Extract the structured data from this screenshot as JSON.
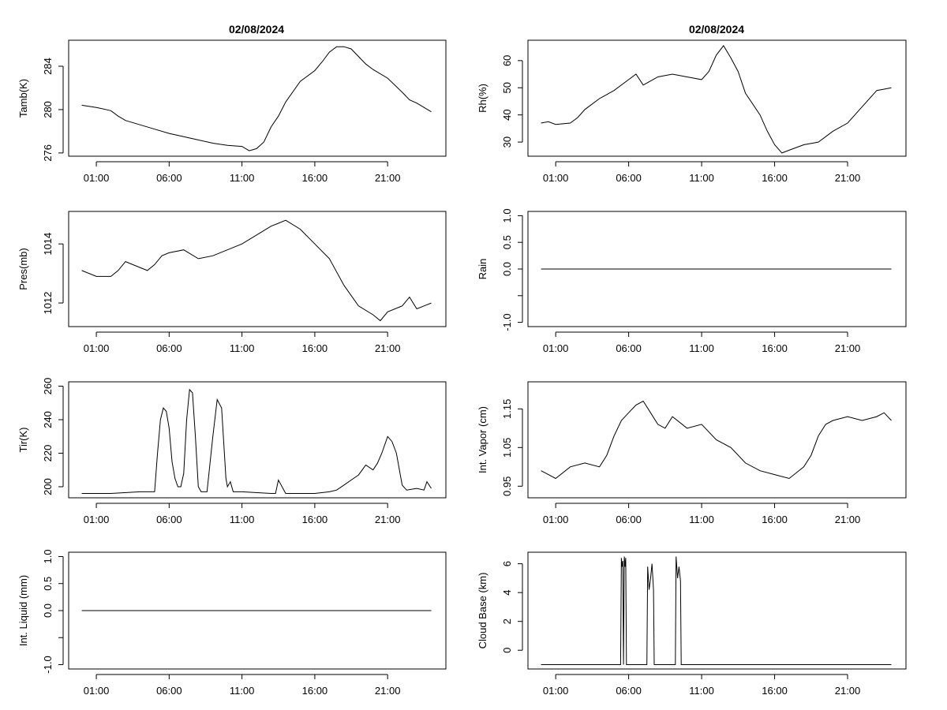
{
  "figure": {
    "titles": [
      "02/08/2024",
      "02/08/2024"
    ]
  },
  "chart_data": [
    {
      "id": "tamb",
      "type": "line",
      "title": "02/08/2024",
      "xlabel": "",
      "ylabel": "Tamb(K)",
      "x_tick_labels": [
        "01:00",
        "06:00",
        "11:00",
        "16:00",
        "21:00"
      ],
      "x_tick_hours": [
        1,
        6,
        11,
        16,
        21
      ],
      "xlim": [
        -0.9,
        25.0
      ],
      "ylim": [
        275.7,
        286.4
      ],
      "y_ticks": [
        276,
        280,
        284
      ],
      "x": [
        0,
        1,
        2,
        2.5,
        3,
        4,
        5,
        6,
        7,
        8,
        9,
        10,
        11,
        11.5,
        12,
        12.5,
        13,
        13.5,
        14,
        15,
        16,
        16.5,
        17,
        17.5,
        18,
        18.5,
        19,
        19.5,
        20,
        21,
        22,
        22.5,
        23,
        23.5,
        24
      ],
      "y": [
        280.4,
        280.2,
        279.9,
        279.4,
        279,
        278.6,
        278.2,
        277.8,
        277.5,
        277.2,
        276.9,
        276.7,
        276.6,
        276.2,
        276.4,
        277,
        278.4,
        279.4,
        280.7,
        282.6,
        283.6,
        284.4,
        285.3,
        285.8,
        285.8,
        285.6,
        284.9,
        284.2,
        283.7,
        282.9,
        281.6,
        280.9,
        280.6,
        280.2,
        279.8
      ]
    },
    {
      "id": "rh",
      "type": "line",
      "title": "02/08/2024",
      "xlabel": "",
      "ylabel": "Rh(%)",
      "x_tick_labels": [
        "01:00",
        "06:00",
        "11:00",
        "16:00",
        "21:00"
      ],
      "x_tick_hours": [
        1,
        6,
        11,
        16,
        21
      ],
      "xlim": [
        -0.9,
        25.0
      ],
      "ylim": [
        24.8,
        67.5
      ],
      "y_ticks": [
        30,
        40,
        50,
        60
      ],
      "x": [
        0,
        0.5,
        1,
        2,
        2.5,
        3,
        4,
        5,
        6,
        6.5,
        7,
        8,
        9,
        10,
        11,
        11.5,
        12,
        12.5,
        13,
        13.5,
        14,
        15,
        15.5,
        16,
        16.5,
        17,
        18,
        19,
        20,
        21,
        22,
        23,
        23.5,
        24
      ],
      "y": [
        37,
        37.5,
        36.5,
        37,
        39,
        42,
        46,
        49,
        53,
        55,
        51,
        54,
        55,
        54,
        53,
        56,
        62,
        65.5,
        61,
        56,
        48,
        40,
        34,
        29,
        26,
        27,
        29,
        30,
        34,
        37,
        43,
        49,
        49.5,
        50
      ]
    },
    {
      "id": "pres",
      "type": "line",
      "title": "",
      "xlabel": "",
      "ylabel": "Pres(mb)",
      "x_tick_labels": [
        "01:00",
        "06:00",
        "11:00",
        "16:00",
        "21:00"
      ],
      "x_tick_hours": [
        1,
        6,
        11,
        16,
        21
      ],
      "xlim": [
        -0.9,
        25.0
      ],
      "ylim": [
        1011.2,
        1015.1
      ],
      "y_ticks": [
        1012,
        1014
      ],
      "x": [
        0,
        1,
        2,
        2.5,
        3,
        4,
        4.5,
        5,
        5.5,
        6,
        7,
        8,
        9,
        10,
        11,
        12,
        13,
        13.5,
        14,
        15,
        16,
        17,
        18,
        19,
        20,
        20.5,
        21,
        22,
        22.5,
        23,
        23.5,
        24
      ],
      "y": [
        1013.1,
        1012.9,
        1012.9,
        1013.1,
        1013.4,
        1013.2,
        1013.1,
        1013.3,
        1013.6,
        1013.7,
        1013.8,
        1013.5,
        1013.6,
        1013.8,
        1014.0,
        1014.3,
        1014.6,
        1014.7,
        1014.8,
        1014.5,
        1014.0,
        1013.5,
        1012.6,
        1011.9,
        1011.6,
        1011.4,
        1011.7,
        1011.9,
        1012.2,
        1011.8,
        1011.9,
        1012.0
      ]
    },
    {
      "id": "rain",
      "type": "line",
      "title": "",
      "xlabel": "",
      "ylabel": "Rain",
      "x_tick_labels": [
        "01:00",
        "06:00",
        "11:00",
        "16:00",
        "21:00"
      ],
      "x_tick_hours": [
        1,
        6,
        11,
        16,
        21
      ],
      "xlim": [
        -0.9,
        25.0
      ],
      "ylim": [
        -1.08,
        1.08
      ],
      "y_ticks": [
        -1.0,
        -0.5,
        0.0,
        0.5,
        1.0
      ],
      "y_tick_labels": [
        "-1.0",
        "",
        "0.0",
        "0.5",
        "1.0"
      ],
      "x": [
        0,
        24
      ],
      "y": [
        0,
        0
      ]
    },
    {
      "id": "tir",
      "type": "line",
      "title": "",
      "xlabel": "",
      "ylabel": "Tir(K)",
      "x_tick_labels": [
        "01:00",
        "06:00",
        "11:00",
        "16:00",
        "21:00"
      ],
      "x_tick_hours": [
        1,
        6,
        11,
        16,
        21
      ],
      "xlim": [
        -0.9,
        25.0
      ],
      "ylim": [
        193.4,
        262.6
      ],
      "y_ticks": [
        200,
        220,
        240,
        260
      ],
      "x": [
        0,
        2,
        4,
        5,
        5.2,
        5.4,
        5.6,
        5.8,
        6,
        6.2,
        6.4,
        6.6,
        6.8,
        7,
        7.2,
        7.4,
        7.6,
        7.8,
        8,
        8.2,
        8.6,
        9,
        9.3,
        9.6,
        9.9,
        10,
        10.2,
        10.4,
        11,
        13,
        13.3,
        13.5,
        14,
        16,
        17,
        17.5,
        18,
        18.5,
        19,
        19.5,
        20,
        20.3,
        20.6,
        21,
        21.3,
        21.6,
        22,
        22.3,
        23,
        23.5,
        23.7,
        24
      ],
      "y": [
        196,
        196,
        197,
        197,
        220,
        240,
        247,
        245,
        235,
        215,
        205,
        200,
        200,
        208,
        240,
        258,
        256,
        230,
        200,
        197,
        197,
        230,
        252,
        247,
        205,
        200,
        203,
        197,
        197,
        196,
        196,
        204,
        196,
        196,
        197,
        198,
        201,
        204,
        207,
        213,
        210,
        214,
        220,
        230,
        227,
        220,
        201,
        198,
        199,
        198,
        203,
        199
      ]
    },
    {
      "id": "intvapor",
      "type": "line",
      "title": "",
      "xlabel": "",
      "ylabel": "Int. Vapor (cm)",
      "x_tick_labels": [
        "01:00",
        "06:00",
        "11:00",
        "16:00",
        "21:00"
      ],
      "x_tick_hours": [
        1,
        6,
        11,
        16,
        21
      ],
      "xlim": [
        -0.9,
        25.0
      ],
      "ylim": [
        0.92,
        1.22
      ],
      "y_ticks": [
        0.95,
        1.05,
        1.15
      ],
      "x": [
        0,
        0.5,
        1,
        2,
        3,
        4,
        4.5,
        5,
        5.5,
        6,
        6.5,
        7,
        7.5,
        8,
        8.5,
        9,
        10,
        11,
        12,
        13,
        14,
        15,
        16,
        17,
        18,
        18.5,
        19,
        19.5,
        20,
        21,
        22,
        23,
        23.5,
        24
      ],
      "y": [
        0.99,
        0.98,
        0.97,
        1.0,
        1.01,
        1.0,
        1.03,
        1.08,
        1.12,
        1.14,
        1.16,
        1.17,
        1.14,
        1.11,
        1.1,
        1.13,
        1.1,
        1.11,
        1.07,
        1.05,
        1.01,
        0.99,
        0.98,
        0.97,
        1.0,
        1.03,
        1.08,
        1.11,
        1.12,
        1.13,
        1.12,
        1.13,
        1.14,
        1.12
      ]
    },
    {
      "id": "intliquid",
      "type": "line",
      "title": "",
      "xlabel": "",
      "ylabel": "Int. Liquid (mm)",
      "x_tick_labels": [
        "01:00",
        "06:00",
        "11:00",
        "16:00",
        "21:00"
      ],
      "x_tick_hours": [
        1,
        6,
        11,
        16,
        21
      ],
      "xlim": [
        -0.9,
        25.0
      ],
      "ylim": [
        -1.08,
        1.08
      ],
      "y_ticks": [
        -1.0,
        -0.5,
        0.0,
        0.5,
        1.0
      ],
      "y_tick_labels": [
        "-1.0",
        "",
        "0.0",
        "0.5",
        "1.0"
      ],
      "x": [
        0,
        24
      ],
      "y": [
        0,
        0
      ]
    },
    {
      "id": "cloudbase",
      "type": "line",
      "title": "",
      "xlabel": "",
      "ylabel": "Cloud Base (km)",
      "x_tick_labels": [
        "01:00",
        "06:00",
        "11:00",
        "16:00",
        "21:00"
      ],
      "x_tick_hours": [
        1,
        6,
        11,
        16,
        21
      ],
      "xlim": [
        -0.9,
        25.0
      ],
      "ylim": [
        -1.3,
        6.8
      ],
      "y_ticks": [
        0,
        2,
        4,
        6
      ],
      "x": [
        0,
        5.45,
        5.5,
        5.55,
        5.6,
        5.65,
        5.7,
        5.75,
        5.8,
        5.85,
        5.9,
        5.95,
        6.0,
        6.05,
        7.25,
        7.3,
        7.4,
        7.5,
        7.6,
        7.7,
        7.75,
        9.2,
        9.25,
        9.35,
        9.45,
        9.55,
        9.6,
        9.65,
        24
      ],
      "y": [
        -1,
        -1,
        6.4,
        5.8,
        6.2,
        -1,
        6.5,
        5.8,
        6.4,
        -1,
        -1,
        -1,
        -1,
        -1,
        -1,
        5.8,
        4.2,
        5.0,
        6.0,
        4.2,
        -1,
        -1,
        6.5,
        5.0,
        5.8,
        4.8,
        -1,
        -1,
        -1
      ]
    }
  ]
}
